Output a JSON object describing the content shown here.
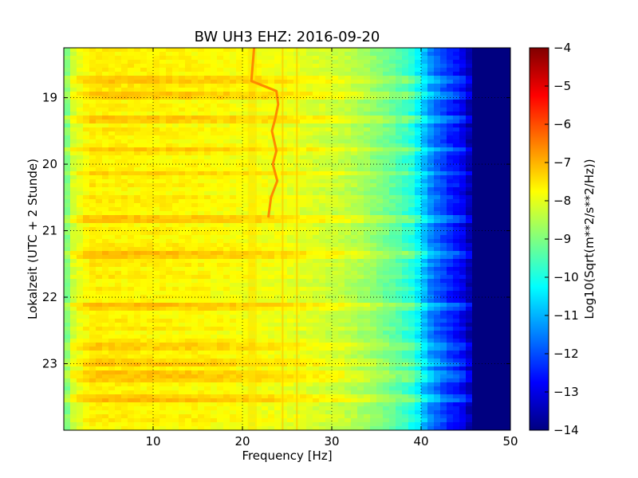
{
  "chart_data": {
    "type": "heatmap",
    "title": "BW UH3 EHZ: 2016-09-20",
    "xlabel": "Frequency [Hz]",
    "ylabel": "Lokalzeit (UTC + 2 Stunde)",
    "xlim": [
      0,
      50
    ],
    "ylim": [
      24,
      18.25
    ],
    "x_ticks": [
      10,
      20,
      30,
      40,
      50
    ],
    "y_ticks": [
      19,
      20,
      21,
      22,
      23
    ],
    "grid": true,
    "colormap": "jet",
    "colorbar": {
      "label": "Log10(Sqrt(m**2/s**2/Hz))",
      "range": [
        -14,
        -4
      ],
      "ticks": [
        -4,
        -5,
        -6,
        -7,
        -8,
        -9,
        -10,
        -11,
        -12,
        -13,
        -14
      ]
    },
    "x_profile": {
      "frequency_hz": [
        0,
        1,
        3,
        15,
        24,
        31,
        34,
        37,
        39,
        40,
        41,
        43,
        44.5,
        46,
        50
      ],
      "log10_amplitude": [
        -9.4,
        -8.2,
        -7.6,
        -7.7,
        -7.9,
        -8.3,
        -8.7,
        -9.3,
        -9.9,
        -10.6,
        -11.4,
        -12.3,
        -12.8,
        -14,
        -14
      ]
    },
    "spectral_line": {
      "time_h": [
        18.25,
        18.75,
        18.9,
        19.1,
        19.3,
        19.5,
        19.8,
        20,
        20.25,
        20.5,
        20.8
      ],
      "frequency_hz": [
        21.3,
        21.0,
        23.8,
        24.0,
        23.7,
        23.3,
        23.8,
        23.4,
        23.9,
        23.2,
        22.9
      ]
    },
    "constant_lines_hz": [
      26.1,
      24.5
    ],
    "vertical_band": {
      "frequency_range_hz": [
        20.6,
        21.6
      ],
      "time_h": [
        18.25,
        24
      ]
    },
    "disturbance_times_h": [
      18.7,
      18.95,
      19.3,
      19.75,
      20.1,
      20.8,
      21.35,
      22.1,
      22.7,
      22.95,
      23.1,
      23.2,
      23.5
    ]
  }
}
